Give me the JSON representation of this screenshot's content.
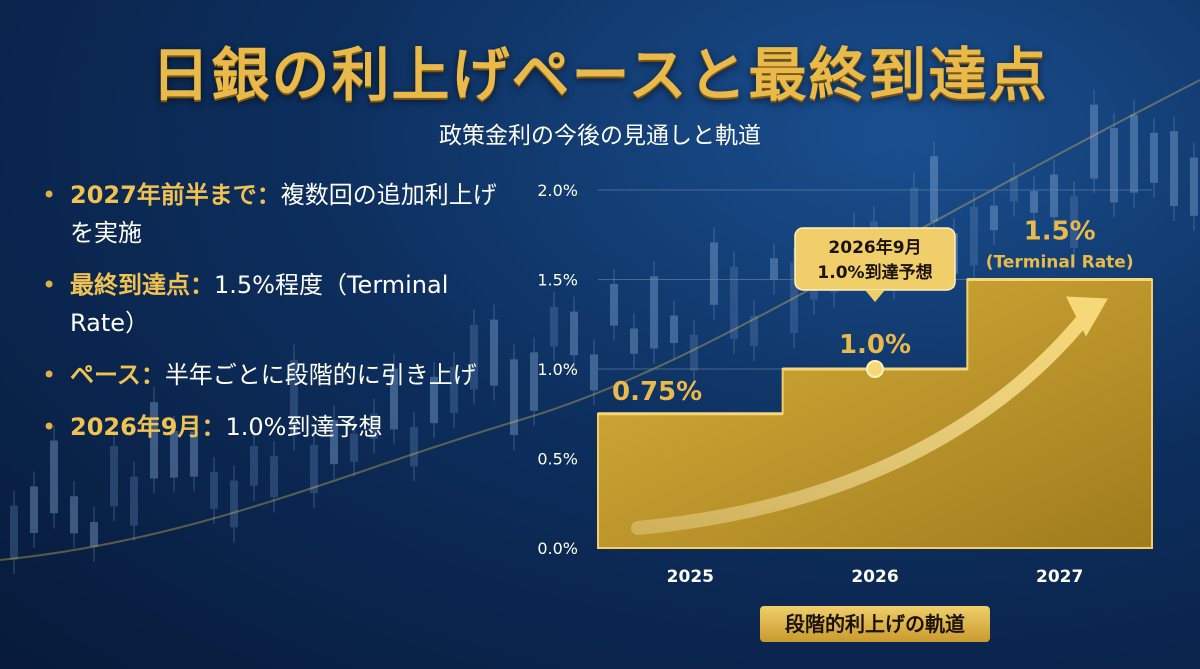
{
  "header": {
    "title": "日銀の利上げペースと最終到達点",
    "subtitle": "政策金利の今後の見通しと軌道"
  },
  "bullets": [
    {
      "key": "2027年前半まで",
      "sep": "：",
      "text": "複数回の追加利上げを実施"
    },
    {
      "key": "最終到達点",
      "sep": "：",
      "text": "1.5%程度（Terminal Rate）"
    },
    {
      "key": "ペース",
      "sep": "：",
      "text": "半年ごとに段階的に引き上げ"
    },
    {
      "key": "2026年9月",
      "sep": "：",
      "text": "1.0%到達予想"
    }
  ],
  "chart_data": {
    "type": "area",
    "shape": "step",
    "x": [
      "2025",
      "2026",
      "2027"
    ],
    "values": [
      0.75,
      1.0,
      1.5
    ],
    "ylim": [
      0,
      2.0
    ],
    "yticks": [
      "0.0%",
      "0.5%",
      "1.0%",
      "1.5%",
      "2.0%"
    ],
    "ytick_values": [
      0,
      0.5,
      1.0,
      1.5,
      2.0
    ],
    "grid": true,
    "data_labels": [
      "0.75%",
      "1.0%",
      "1.5%"
    ],
    "terminal_note": "(Terminal Rate)",
    "callout": {
      "line1": "2026年9月",
      "line2": "1.0%到達予想"
    },
    "caption": "段階的利上げの軌道",
    "colors": {
      "fill": "#c9a232",
      "gold": "#e9b94a",
      "grid": "#6e86a8"
    }
  }
}
